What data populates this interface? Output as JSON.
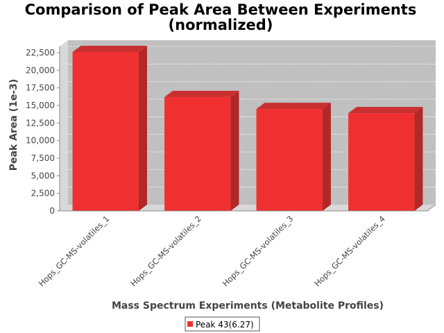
{
  "chart_data": {
    "type": "bar",
    "title_lines": [
      "Comparison of Peak Area Between Experiments",
      "(normalized)"
    ],
    "xlabel": "Mass Spectrum Experiments (Metabolite Profiles)",
    "ylabel": "Peak Area (1e-3)",
    "categories": [
      "Hops_GC-MS-volatiles_1",
      "Hops_GC-MS-volatiles_2",
      "Hops_GC-MS-volatiles_3",
      "Hops_GC-MS-volatiles_4"
    ],
    "series": [
      {
        "name": "Peak 43(6.27)",
        "values": [
          22600,
          16200,
          14500,
          13900
        ]
      }
    ],
    "yticks": [
      "0",
      "2,500",
      "5,000",
      "7,500",
      "10,000",
      "12,500",
      "15,000",
      "17,500",
      "20,000",
      "22,500"
    ],
    "ylim": [
      0,
      22500
    ],
    "grid": true,
    "legend_position": "bottom",
    "colors": {
      "bar_front": "#f03030",
      "bar_side": "#b02828",
      "bar_top": "#c83030",
      "plot_back": "#c0c0c0",
      "plot_wall": "#d8d8d8",
      "grid": "#ffffff"
    }
  }
}
